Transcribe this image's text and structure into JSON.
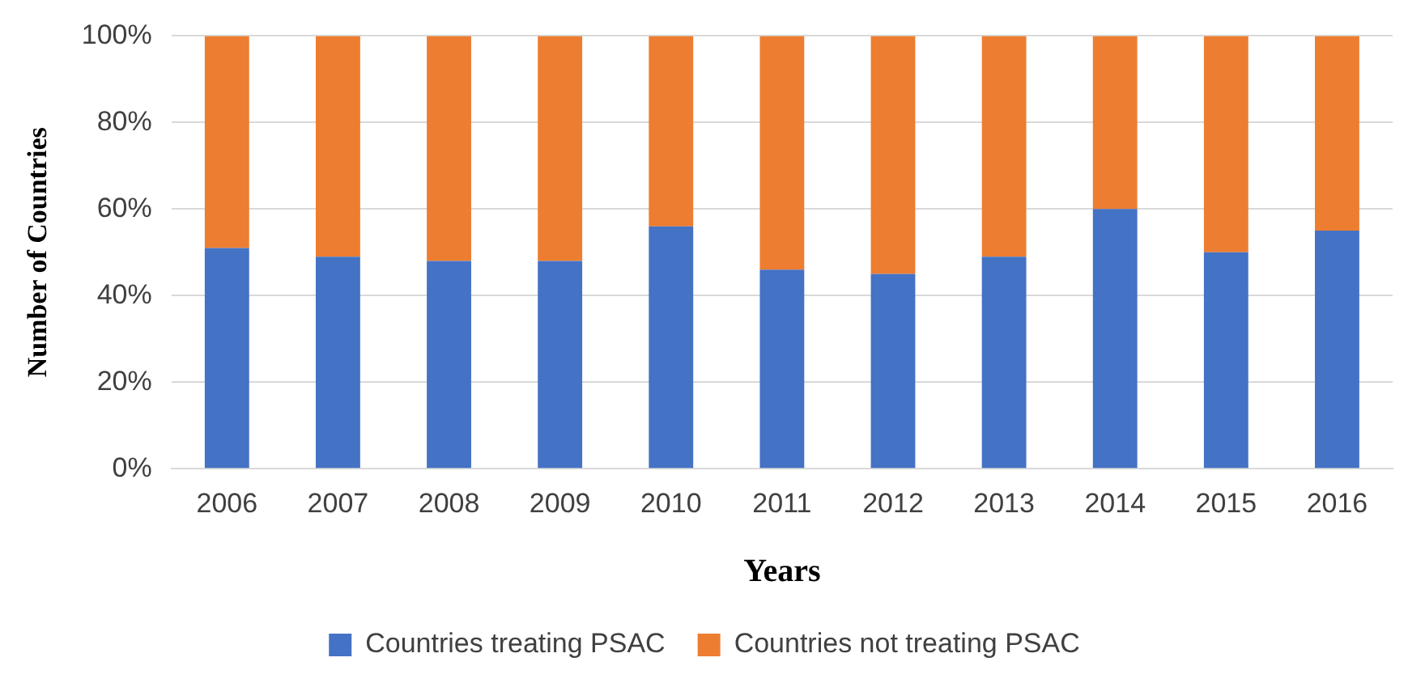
{
  "chart_data": {
    "type": "bar",
    "stacked": true,
    "xlabel": "Years",
    "ylabel": "Number of Countries",
    "categories": [
      "2006",
      "2007",
      "2008",
      "2009",
      "2010",
      "2011",
      "2012",
      "2013",
      "2014",
      "2015",
      "2016"
    ],
    "series": [
      {
        "name": "Countries treating PSAC",
        "color": "#4472c4",
        "values": [
          51,
          49,
          48,
          48,
          56,
          46,
          45,
          49,
          60,
          50,
          55
        ]
      },
      {
        "name": "Countries not treating PSAC",
        "color": "#ed7d31",
        "values": [
          49,
          51,
          52,
          52,
          44,
          54,
          55,
          51,
          40,
          50,
          45
        ]
      }
    ],
    "ylim": [
      0,
      100
    ],
    "yticks": [
      {
        "value": 0,
        "label": "0%"
      },
      {
        "value": 20,
        "label": "20%"
      },
      {
        "value": 40,
        "label": "40%"
      },
      {
        "value": 60,
        "label": "60%"
      },
      {
        "value": 80,
        "label": "80%"
      },
      {
        "value": 100,
        "label": "100%"
      }
    ],
    "grid": "y",
    "legend": "bottom"
  }
}
